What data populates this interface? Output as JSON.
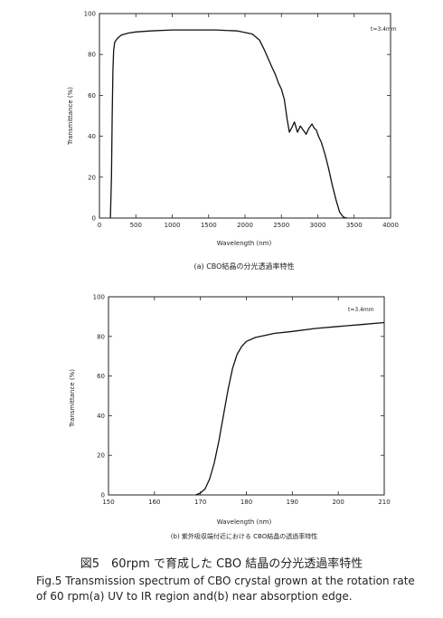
{
  "chart_data": [
    {
      "type": "line",
      "subtitle": "(a) CBO結晶の分光透過率特性",
      "xlabel": "Wavelength (nm)",
      "ylabel": "Transmittance (%)",
      "annotation": "t=3.4mm",
      "xlim": [
        0,
        4000
      ],
      "ylim": [
        0,
        100
      ],
      "xticks": [
        0,
        500,
        1000,
        1500,
        2000,
        2500,
        3000,
        3500,
        4000
      ],
      "yticks": [
        0,
        20,
        40,
        60,
        80,
        100
      ],
      "grid": false,
      "series": [
        {
          "x": [
            150,
            165,
            175,
            185,
            195,
            210,
            250,
            300,
            400,
            500,
            700,
            1000,
            1300,
            1600,
            1900,
            2100,
            2200,
            2270,
            2330,
            2380,
            2420,
            2460,
            2500,
            2540,
            2580,
            2610,
            2640,
            2680,
            2720,
            2760,
            2800,
            2840,
            2880,
            2920,
            2950,
            2980,
            3010,
            3050,
            3100,
            3150,
            3200,
            3250,
            3300,
            3350,
            3400
          ],
          "y": [
            0,
            20,
            50,
            72,
            82,
            86,
            88,
            89.5,
            90.5,
            91,
            91.5,
            92,
            92,
            92,
            91.5,
            90,
            87,
            82,
            77,
            73,
            70,
            66,
            63,
            58,
            48,
            42,
            44,
            47,
            42,
            45,
            43,
            41,
            44,
            46,
            44,
            43,
            40,
            37,
            31,
            24,
            16,
            9,
            3,
            0.5,
            0
          ]
        }
      ]
    },
    {
      "type": "line",
      "subtitle": "(b) 紫外吸収端付近における CBO結晶の透過率特性",
      "xlabel": "Wavelength (nm)",
      "ylabel": "Transmittance (%)",
      "annotation": "t=3.4mm",
      "xlim": [
        150,
        210
      ],
      "ylim": [
        0,
        100
      ],
      "xticks": [
        150,
        160,
        170,
        180,
        190,
        200,
        210
      ],
      "yticks": [
        0,
        20,
        40,
        60,
        80,
        100
      ],
      "grid": false,
      "series": [
        {
          "x": [
            169,
            170,
            171,
            172,
            173,
            174,
            175,
            176,
            177,
            178,
            179,
            180,
            182,
            184,
            186,
            190,
            195,
            200,
            205,
            210
          ],
          "y": [
            0,
            1,
            3,
            8,
            16,
            27,
            40,
            53,
            64,
            71,
            75,
            77.5,
            79.5,
            80.5,
            81.5,
            82.5,
            84,
            85,
            86,
            87
          ]
        }
      ]
    }
  ],
  "captions": {
    "japanese": "図5　60rpm で育成した CBO 結晶の分光透過率特性",
    "english": "Fig.5 Transmission spectrum of CBO crystal grown at the rotation rate of 60 rpm(a) UV to IR region and(b) near absorption edge."
  }
}
